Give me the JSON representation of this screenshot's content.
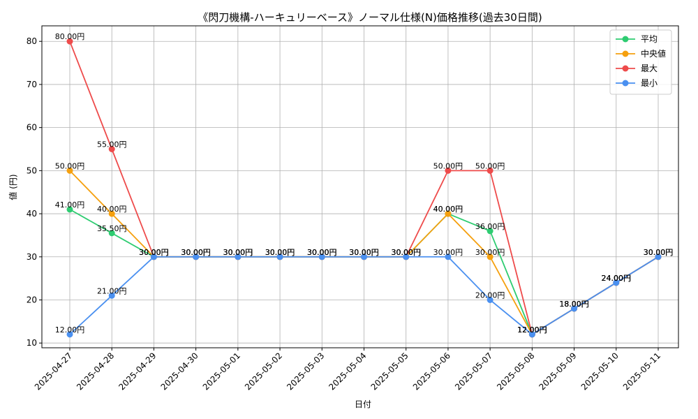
{
  "chart_data": {
    "type": "line",
    "title": "《閃刀機構-ハーキュリーベース》ノーマル仕様(N)価格推移(過去30日間)",
    "xlabel": "日付",
    "ylabel": "値 (円)",
    "categories": [
      "2025-04-27",
      "2025-04-28",
      "2025-04-29",
      "2025-04-30",
      "2025-05-01",
      "2025-05-02",
      "2025-05-03",
      "2025-05-04",
      "2025-05-05",
      "2025-05-06",
      "2025-05-07",
      "2025-05-08",
      "2025-05-09",
      "2025-05-10",
      "2025-05-11"
    ],
    "ylim": [
      8.9,
      83.6
    ],
    "yticks": [
      10,
      20,
      30,
      40,
      50,
      60,
      70,
      80
    ],
    "grid": true,
    "legend_position": "top-right",
    "value_suffix": "円",
    "series": [
      {
        "name": "平均",
        "color": "#2ecc71",
        "values": [
          41.0,
          35.5,
          30.0,
          30.0,
          30.0,
          30.0,
          30.0,
          30.0,
          30.0,
          40.0,
          36.0,
          12.0,
          18.0,
          24.0,
          30.0
        ]
      },
      {
        "name": "中央値",
        "color": "#f5a00f",
        "values": [
          50.0,
          40.0,
          30.0,
          30.0,
          30.0,
          30.0,
          30.0,
          30.0,
          30.0,
          40.0,
          30.0,
          12.0,
          18.0,
          24.0,
          30.0
        ]
      },
      {
        "name": "最大",
        "color": "#ee4b4b",
        "values": [
          80.0,
          55.0,
          30.0,
          30.0,
          30.0,
          30.0,
          30.0,
          30.0,
          30.0,
          50.0,
          50.0,
          12.0,
          18.0,
          24.0,
          30.0
        ]
      },
      {
        "name": "最小",
        "color": "#4a90f0",
        "values": [
          12.0,
          21.0,
          30.0,
          30.0,
          30.0,
          30.0,
          30.0,
          30.0,
          30.0,
          30.0,
          20.0,
          12.0,
          18.0,
          24.0,
          30.0
        ]
      }
    ]
  }
}
